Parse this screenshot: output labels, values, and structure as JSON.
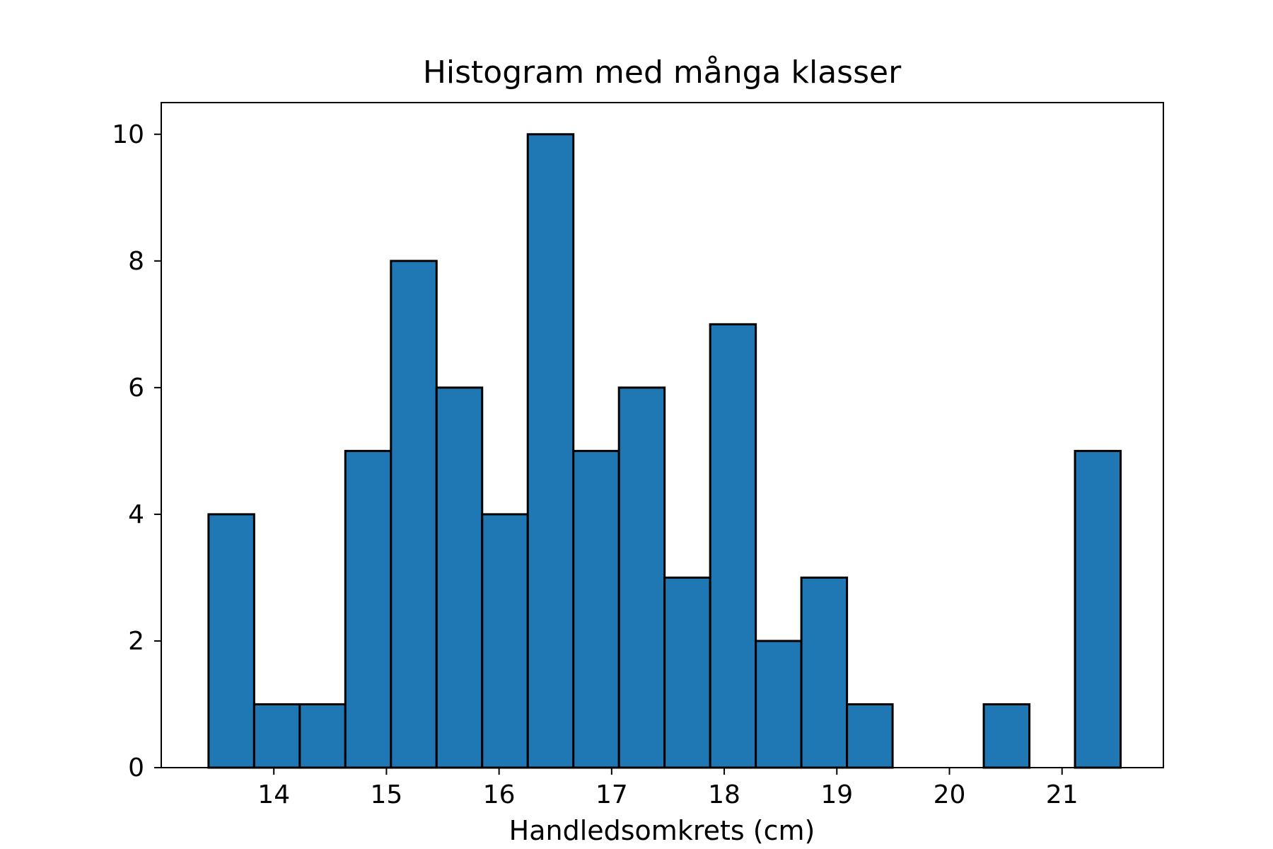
{
  "chart_data": {
    "type": "bar",
    "title": "Histogram med många klasser",
    "xlabel": "Handledsomkrets (cm)",
    "ylabel": "",
    "bin_edges": [
      13.42,
      13.825,
      14.23,
      14.635,
      15.04,
      15.445,
      15.85,
      16.255,
      16.66,
      17.065,
      17.47,
      17.875,
      18.28,
      18.685,
      19.09,
      19.495,
      19.9,
      20.305,
      20.71,
      21.115,
      21.52
    ],
    "values": [
      4,
      1,
      1,
      5,
      8,
      6,
      4,
      10,
      5,
      6,
      3,
      7,
      2,
      3,
      1,
      0,
      0,
      1,
      0,
      5
    ],
    "xlim": [
      13.0,
      21.9
    ],
    "ylim": [
      0,
      10.5
    ],
    "x_ticks": [
      14,
      15,
      16,
      17,
      18,
      19,
      20,
      21
    ],
    "x_tick_labels": [
      "14",
      "15",
      "16",
      "17",
      "18",
      "19",
      "20",
      "21"
    ],
    "y_ticks": [
      0,
      2,
      4,
      6,
      8,
      10
    ],
    "y_tick_labels": [
      "0",
      "2",
      "4",
      "6",
      "8",
      "10"
    ],
    "bar_color": "#1f77b4",
    "edge_color": "#000000",
    "grid": false,
    "legend": "none"
  }
}
